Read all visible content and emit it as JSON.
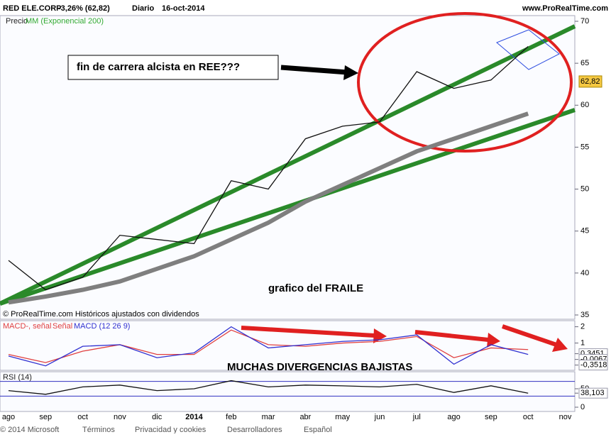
{
  "header": {
    "symbol": "RED ELE.CORP",
    "change": "-3,26% (62,82)",
    "period": "Diario",
    "date": "16-oct-2014",
    "site": "www.ProRealTime.com"
  },
  "annotations": {
    "question": "fin de carrera alcista en REE???",
    "fraile": "grafico del FRAILE",
    "divergences": "MUCHAS DIVERGENCIAS BAJISTAS",
    "source": "© ProRealTime.com  Históricos ajustados con dividendos"
  },
  "footer": [
    "© 2014 Microsoft",
    "Términos",
    "Privacidad y cookies",
    "Desarrolladores",
    "Español"
  ],
  "chart_data": [
    {
      "type": "line",
      "title": "Precio",
      "categories": [
        "ago",
        "sep",
        "oct",
        "nov",
        "dic",
        "2014",
        "feb",
        "mar",
        "abr",
        "may",
        "jun",
        "jul",
        "ago",
        "sep",
        "oct",
        "nov"
      ],
      "series": [
        {
          "name": "Precio",
          "color": "#111111",
          "values": [
            41.5,
            38,
            39.5,
            44.5,
            44,
            43.5,
            51,
            50,
            56,
            57.5,
            58,
            64,
            62,
            63,
            67,
            null
          ],
          "value_labels": {
            "last": {
              "value": 62.82,
              "label": "62,82"
            }
          }
        },
        {
          "name": "MM (Exponencial 200)",
          "color": "#7f7f7f",
          "values": [
            36.5,
            37.2,
            38,
            39,
            40.5,
            42,
            44,
            46,
            48.5,
            50.5,
            52.5,
            54.5,
            56,
            57.5,
            59,
            null
          ]
        }
      ],
      "ylim": [
        35,
        70
      ],
      "yticks": [
        35,
        40,
        45,
        50,
        55,
        60,
        65,
        70
      ]
    },
    {
      "type": "line",
      "title": "MACD-, señal",
      "categories": [
        "ago",
        "sep",
        "oct",
        "nov",
        "dic",
        "2014",
        "feb",
        "mar",
        "abr",
        "may",
        "jun",
        "jul",
        "ago",
        "sep",
        "oct",
        "nov"
      ],
      "series": [
        {
          "name": "Señal",
          "color": "#e04040",
          "values": [
            0.3,
            -0.2,
            0.5,
            0.9,
            0.3,
            0.3,
            1.8,
            0.9,
            0.8,
            1,
            1.1,
            1.4,
            0.1,
            0.7,
            0.6,
            null
          ]
        },
        {
          "name": "MACD (12 26 9)",
          "color": "#3030d0",
          "values": [
            0.2,
            -0.4,
            0.8,
            0.9,
            0.1,
            0.4,
            2,
            0.7,
            0.9,
            1.1,
            1.2,
            1.5,
            -0.3,
            0.9,
            0.3,
            null
          ]
        }
      ],
      "ylim": [
        -0.5,
        2.2
      ],
      "yticks": [
        1,
        2,
        {
          "value": 0.3451,
          "label": "0,3451"
        },
        {
          "value": -0.0067,
          "label": "-0,0067"
        },
        {
          "value": -0.3518,
          "label": "-0,3518"
        }
      ]
    },
    {
      "type": "line",
      "title": "RSI (14)",
      "categories": [
        "ago",
        "sep",
        "oct",
        "nov",
        "dic",
        "2014",
        "feb",
        "mar",
        "abr",
        "may",
        "jun",
        "jul",
        "ago",
        "sep",
        "oct",
        "nov"
      ],
      "series": [
        {
          "name": "RSI (14)",
          "color": "#111111",
          "values": [
            45,
            35,
            55,
            60,
            45,
            50,
            72,
            55,
            60,
            58,
            55,
            62,
            40,
            58,
            38,
            null
          ]
        }
      ],
      "ylim": [
        0,
        100
      ],
      "yticks": [
        0,
        50,
        {
          "value": 38.103,
          "label": "38,103"
        }
      ],
      "levels": [
        30,
        70
      ]
    }
  ]
}
